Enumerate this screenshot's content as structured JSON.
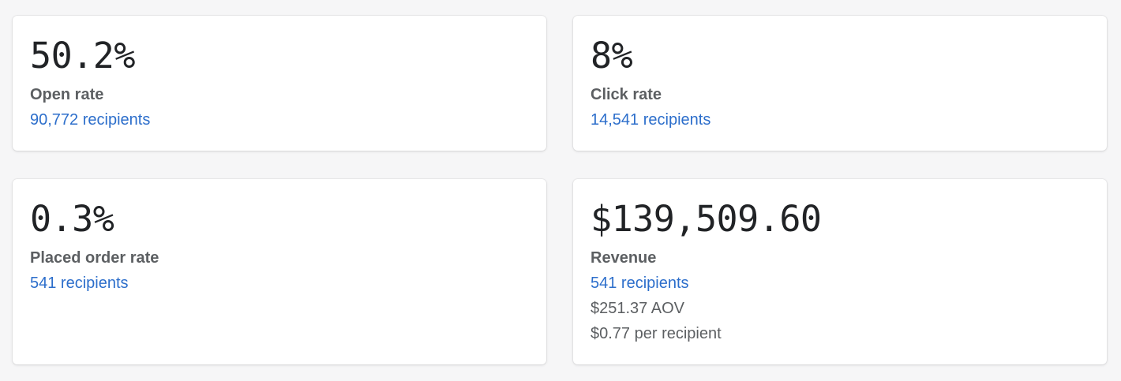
{
  "cards": [
    {
      "value": "50.2%",
      "label": "Open rate",
      "link": "90,772 recipients"
    },
    {
      "value": "8%",
      "label": "Click rate",
      "link": "14,541 recipients"
    },
    {
      "value": "0.3%",
      "label": "Placed order rate",
      "link": "541 recipients"
    },
    {
      "value": "$139,509.60",
      "label": "Revenue",
      "link": "541 recipients",
      "aov": "$251.37 AOV",
      "per_recipient": "$0.77 per recipient"
    }
  ],
  "colors": {
    "background": "#f6f6f7",
    "card": "#ffffff",
    "value_text": "#212326",
    "label_text": "#5c5f62",
    "link": "#2c6ecb"
  }
}
